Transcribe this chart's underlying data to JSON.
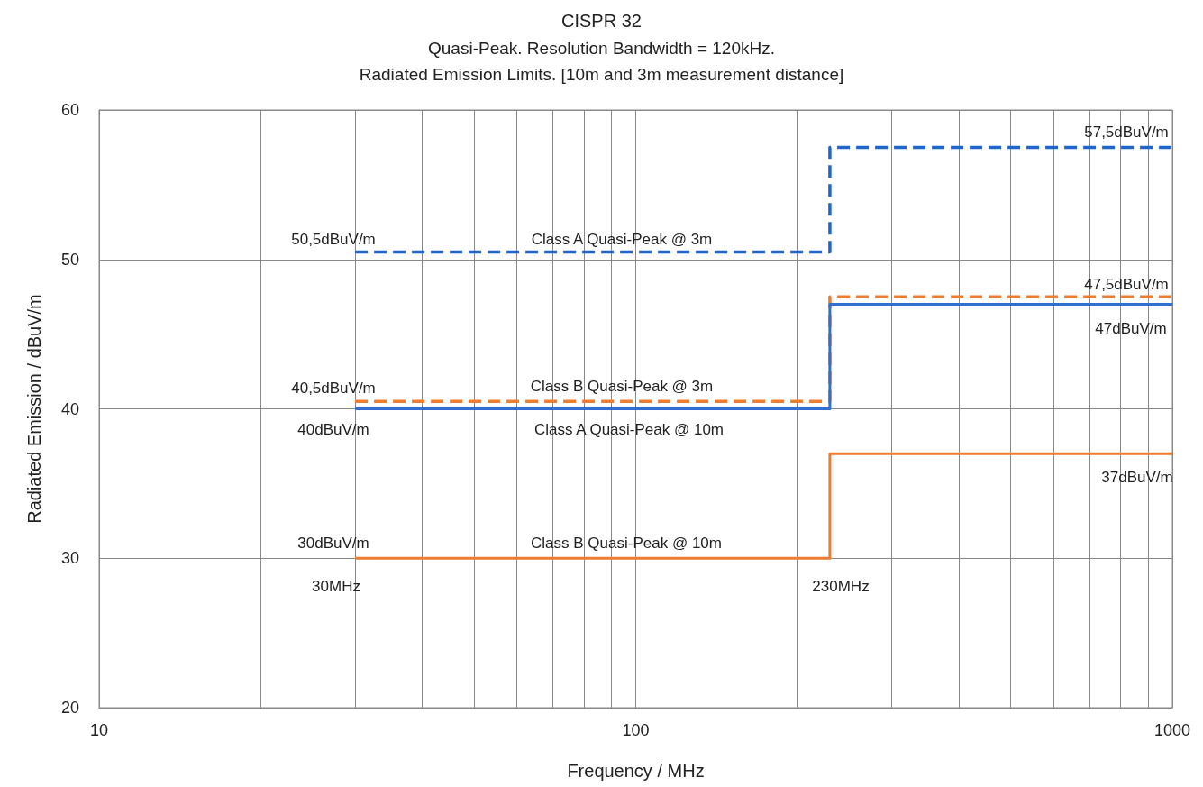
{
  "chart_data": {
    "type": "step",
    "title": "CISPR 32",
    "subtitle": "Quasi-Peak. Resolution Bandwidth = 120kHz.\nRadiated Emission Limits. [10m and 3m measurement distance]",
    "xlabel": "Frequency / MHz",
    "ylabel": "Radiated Emission / dBuV/m",
    "x": [
      30,
      230,
      1000
    ],
    "series": [
      {
        "color": "#1f66cc",
        "line_style": "dashed",
        "values": [
          50.5,
          57.5,
          57.5
        ]
      },
      {
        "color": "#ed7d31",
        "line_style": "dashed",
        "values": [
          40.5,
          47.5,
          47.5
        ]
      },
      {
        "color": "#2f6fd0",
        "line_style": "solid",
        "values": [
          40,
          47,
          47
        ]
      },
      {
        "color": "#ed7d31",
        "line_style": "solid",
        "values": [
          30,
          37,
          37
        ]
      }
    ],
    "log": "x",
    "xlim": [
      10,
      1000
    ],
    "xticks": [
      10,
      {
        "value": 20,
        "label": null
      },
      {
        "value": 30,
        "label": null
      },
      {
        "value": 40,
        "label": null
      },
      {
        "value": 50,
        "label": null
      },
      {
        "value": 60,
        "label": null
      },
      {
        "value": 70,
        "label": null
      },
      {
        "value": 80,
        "label": null
      },
      {
        "value": 90,
        "label": null
      },
      100,
      {
        "value": 200,
        "label": null
      },
      {
        "value": 300,
        "label": null
      },
      {
        "value": 400,
        "label": null
      },
      {
        "value": 500,
        "label": null
      },
      {
        "value": 600,
        "label": null
      },
      {
        "value": 700,
        "label": null
      },
      {
        "value": 800,
        "label": null
      },
      {
        "value": 900,
        "label": null
      },
      1000
    ],
    "ylim": [
      20,
      60
    ],
    "yticks": [
      20,
      30,
      40,
      50,
      60
    ],
    "grid": true,
    "annotations": [
      "57,5dBuV/m",
      "50,5dBuV/m",
      "Class A Quasi-Peak @ 3m",
      "47,5dBuV/m",
      "47dBuV/m",
      "40,5dBuV/m",
      "Class B Quasi-Peak @ 3m",
      "40dBuV/m",
      "Class A Quasi-Peak @ 10m",
      "37dBuV/m",
      "30dBuV/m",
      "Class B Quasi-Peak @ 10m",
      "30MHz",
      "230MHz"
    ]
  }
}
